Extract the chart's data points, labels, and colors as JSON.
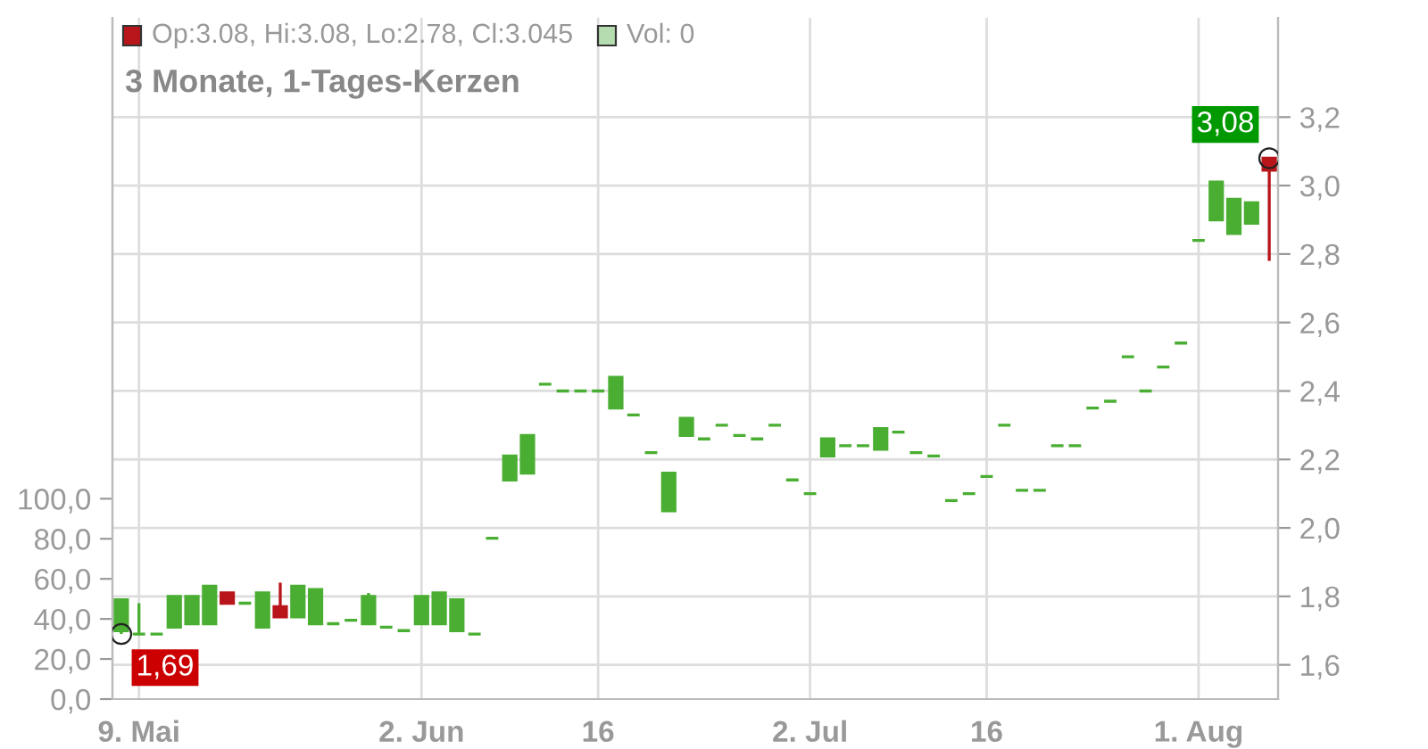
{
  "chart_data": {
    "type": "candlestick",
    "title": "3 Monate, 1-Tages-Kerzen",
    "categories": [
      null,
      "9. Mai",
      null,
      null,
      null,
      null,
      null,
      null,
      null,
      null,
      null,
      null,
      null,
      null,
      null,
      null,
      null,
      "2. Jun",
      null,
      null,
      null,
      null,
      null,
      null,
      null,
      null,
      null,
      "16",
      null,
      null,
      null,
      null,
      null,
      null,
      null,
      null,
      null,
      null,
      null,
      "2. Jul",
      null,
      null,
      null,
      null,
      null,
      null,
      null,
      null,
      null,
      "16",
      null,
      null,
      null,
      null,
      null,
      null,
      null,
      null,
      null,
      null,
      null,
      "1. Aug",
      null,
      null,
      null,
      null
    ],
    "ohlc": [
      [
        1.7,
        1.79,
        1.69,
        1.79
      ],
      [
        1.69,
        1.78,
        1.69,
        1.69
      ],
      [
        1.69,
        1.69,
        1.69,
        1.69
      ],
      [
        1.71,
        1.8,
        1.71,
        1.8
      ],
      [
        1.72,
        1.8,
        1.72,
        1.8
      ],
      [
        1.72,
        1.83,
        1.72,
        1.83
      ],
      [
        1.81,
        1.81,
        1.78,
        1.78
      ],
      [
        1.78,
        1.78,
        1.78,
        1.78
      ],
      [
        1.71,
        1.81,
        1.71,
        1.81
      ],
      [
        1.77,
        1.84,
        1.74,
        1.74
      ],
      [
        1.74,
        1.83,
        1.74,
        1.83
      ],
      [
        1.72,
        1.82,
        1.72,
        1.82
      ],
      [
        1.72,
        1.72,
        1.72,
        1.72
      ],
      [
        1.73,
        1.73,
        1.73,
        1.73
      ],
      [
        1.72,
        1.81,
        1.72,
        1.8
      ],
      [
        1.71,
        1.71,
        1.71,
        1.71
      ],
      [
        1.7,
        1.7,
        1.7,
        1.7
      ],
      [
        1.72,
        1.8,
        1.72,
        1.8
      ],
      [
        1.72,
        1.81,
        1.72,
        1.81
      ],
      [
        1.7,
        1.79,
        1.7,
        1.79
      ],
      [
        1.69,
        1.69,
        1.69,
        1.69
      ],
      [
        1.97,
        1.97,
        1.97,
        1.97
      ],
      [
        2.14,
        2.21,
        2.14,
        2.21
      ],
      [
        2.16,
        2.27,
        2.16,
        2.27
      ],
      [
        2.42,
        2.42,
        2.42,
        2.42
      ],
      [
        2.4,
        2.4,
        2.4,
        2.4
      ],
      [
        2.4,
        2.4,
        2.4,
        2.4
      ],
      [
        2.4,
        2.4,
        2.4,
        2.4
      ],
      [
        2.35,
        2.44,
        2.35,
        2.44
      ],
      [
        2.33,
        2.33,
        2.33,
        2.33
      ],
      [
        2.22,
        2.22,
        2.22,
        2.22
      ],
      [
        2.05,
        2.16,
        2.05,
        2.16
      ],
      [
        2.27,
        2.32,
        2.27,
        2.32
      ],
      [
        2.26,
        2.26,
        2.26,
        2.26
      ],
      [
        2.3,
        2.3,
        2.3,
        2.3
      ],
      [
        2.27,
        2.27,
        2.27,
        2.27
      ],
      [
        2.26,
        2.26,
        2.26,
        2.26
      ],
      [
        2.3,
        2.3,
        2.3,
        2.3
      ],
      [
        2.14,
        2.14,
        2.14,
        2.14
      ],
      [
        2.1,
        2.1,
        2.1,
        2.1
      ],
      [
        2.21,
        2.26,
        2.21,
        2.26
      ],
      [
        2.24,
        2.24,
        2.24,
        2.24
      ],
      [
        2.24,
        2.24,
        2.24,
        2.24
      ],
      [
        2.23,
        2.29,
        2.23,
        2.29
      ],
      [
        2.28,
        2.28,
        2.28,
        2.28
      ],
      [
        2.22,
        2.22,
        2.22,
        2.22
      ],
      [
        2.21,
        2.21,
        2.21,
        2.21
      ],
      [
        2.08,
        2.08,
        2.08,
        2.08
      ],
      [
        2.1,
        2.1,
        2.1,
        2.1
      ],
      [
        2.15,
        2.15,
        2.15,
        2.15
      ],
      [
        2.3,
        2.3,
        2.3,
        2.3
      ],
      [
        2.11,
        2.11,
        2.11,
        2.11
      ],
      [
        2.11,
        2.11,
        2.11,
        2.11
      ],
      [
        2.24,
        2.24,
        2.24,
        2.24
      ],
      [
        2.24,
        2.24,
        2.24,
        2.24
      ],
      [
        2.35,
        2.35,
        2.35,
        2.35
      ],
      [
        2.37,
        2.37,
        2.37,
        2.37
      ],
      [
        2.5,
        2.5,
        2.5,
        2.5
      ],
      [
        2.4,
        2.4,
        2.4,
        2.4
      ],
      [
        2.47,
        2.47,
        2.47,
        2.47
      ],
      [
        2.54,
        2.54,
        2.54,
        2.54
      ],
      [
        2.84,
        2.84,
        2.84,
        2.84
      ],
      [
        2.9,
        3.01,
        2.9,
        3.01
      ],
      [
        2.86,
        2.96,
        2.86,
        2.96
      ],
      [
        2.89,
        2.95,
        2.89,
        2.95
      ],
      [
        3.08,
        3.08,
        2.78,
        3.045
      ]
    ],
    "colors": [
      "#4aae32",
      "#4aae32",
      "#4aae32",
      "#4aae32",
      "#4aae32",
      "#4aae32",
      "#b8161b",
      "#4aae32",
      "#4aae32",
      "#b8161b",
      "#4aae32",
      "#4aae32",
      "#4aae32",
      "#4aae32",
      "#4aae32",
      "#4aae32",
      "#4aae32",
      "#4aae32",
      "#4aae32",
      "#4aae32",
      "#4aae32",
      "#4aae32",
      "#4aae32",
      "#4aae32",
      "#4aae32",
      "#4aae32",
      "#4aae32",
      "#4aae32",
      "#4aae32",
      "#4aae32",
      "#4aae32",
      "#4aae32",
      "#4aae32",
      "#4aae32",
      "#4aae32",
      "#4aae32",
      "#4aae32",
      "#4aae32",
      "#4aae32",
      "#4aae32",
      "#4aae32",
      "#4aae32",
      "#4aae32",
      "#4aae32",
      "#4aae32",
      "#4aae32",
      "#4aae32",
      "#4aae32",
      "#4aae32",
      "#4aae32",
      "#4aae32",
      "#4aae32",
      "#4aae32",
      "#4aae32",
      "#4aae32",
      "#4aae32",
      "#4aae32",
      "#4aae32",
      "#4aae32",
      "#4aae32",
      "#4aae32",
      "#4aae32",
      "#4aae32",
      "#4aae32",
      "#4aae32",
      "#b8161b"
    ],
    "ylim": [
      1.5,
      3.49
    ],
    "yticks": [
      {
        "value": 1.6,
        "label": "1,6"
      },
      {
        "value": 1.8,
        "label": "1,8"
      },
      {
        "value": 2.0,
        "label": "2,0"
      },
      {
        "value": 2.2,
        "label": "2,2"
      },
      {
        "value": 2.4,
        "label": "2,4"
      },
      {
        "value": 2.6,
        "label": "2,6"
      },
      {
        "value": 2.8,
        "label": "2,8"
      },
      {
        "value": 3.0,
        "label": "3,0"
      },
      {
        "value": 3.2,
        "label": "3,2"
      }
    ],
    "y2lim": [
      0,
      340
    ],
    "y2ticks": [
      {
        "value": 0,
        "label": "0,0"
      },
      {
        "value": 20,
        "label": "20,0"
      },
      {
        "value": 40,
        "label": "40,0"
      },
      {
        "value": 60,
        "label": "60,0"
      },
      {
        "value": 80,
        "label": "80,0"
      },
      {
        "value": 100,
        "label": "100,0"
      }
    ],
    "grid": true,
    "annotations": [
      "Op:3.08, Hi:3.08, Lo:2.78, Cl:3.045",
      "Vol: 0",
      "1,69",
      "3,08"
    ]
  }
}
